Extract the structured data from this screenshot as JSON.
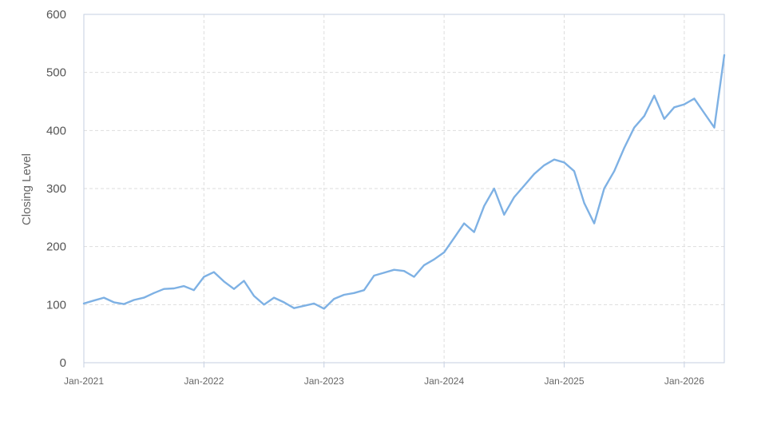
{
  "chart_data": {
    "type": "line",
    "title": "",
    "xlabel": "",
    "ylabel": "Closing Level",
    "x_ticks": [
      "Jan-2021",
      "Jan-2022",
      "Jan-2023",
      "Jan-2024",
      "Jan-2025",
      "Jan-2026"
    ],
    "y_ticks": [
      0,
      100,
      200,
      300,
      400,
      500,
      600
    ],
    "xlim": [
      "2021-01",
      "2026-05"
    ],
    "ylim": [
      0,
      600
    ],
    "grid": true,
    "legend": "none",
    "colors": {
      "line": "#7eb1e4",
      "grid": "#dddddd",
      "axis": "#c5cfe0",
      "plot_border": "#c5cfe0"
    },
    "series": [
      {
        "name": "",
        "points": [
          [
            "2021-01",
            102
          ],
          [
            "2021-02",
            107
          ],
          [
            "2021-03",
            112
          ],
          [
            "2021-04",
            104
          ],
          [
            "2021-05",
            101
          ],
          [
            "2021-06",
            108
          ],
          [
            "2021-07",
            112
          ],
          [
            "2021-08",
            120
          ],
          [
            "2021-09",
            127
          ],
          [
            "2021-10",
            128
          ],
          [
            "2021-11",
            132
          ],
          [
            "2021-12",
            125
          ],
          [
            "2022-01",
            148
          ],
          [
            "2022-02",
            156
          ],
          [
            "2022-03",
            140
          ],
          [
            "2022-04",
            127
          ],
          [
            "2022-05",
            141
          ],
          [
            "2022-06",
            115
          ],
          [
            "2022-07",
            100
          ],
          [
            "2022-08",
            112
          ],
          [
            "2022-09",
            104
          ],
          [
            "2022-10",
            94
          ],
          [
            "2022-11",
            98
          ],
          [
            "2022-12",
            102
          ],
          [
            "2023-01",
            93
          ],
          [
            "2023-02",
            110
          ],
          [
            "2023-03",
            117
          ],
          [
            "2023-04",
            120
          ],
          [
            "2023-05",
            125
          ],
          [
            "2023-06",
            150
          ],
          [
            "2023-07",
            155
          ],
          [
            "2023-08",
            160
          ],
          [
            "2023-09",
            158
          ],
          [
            "2023-10",
            148
          ],
          [
            "2023-11",
            168
          ],
          [
            "2023-12",
            178
          ],
          [
            "2024-01",
            190
          ],
          [
            "2024-02",
            215
          ],
          [
            "2024-03",
            240
          ],
          [
            "2024-04",
            225
          ],
          [
            "2024-05",
            270
          ],
          [
            "2024-06",
            300
          ],
          [
            "2024-07",
            255
          ],
          [
            "2024-08",
            285
          ],
          [
            "2024-09",
            305
          ],
          [
            "2024-10",
            325
          ],
          [
            "2024-11",
            340
          ],
          [
            "2024-12",
            350
          ],
          [
            "2025-01",
            345
          ],
          [
            "2025-02",
            330
          ],
          [
            "2025-03",
            275
          ],
          [
            "2025-04",
            240
          ],
          [
            "2025-05",
            300
          ],
          [
            "2025-06",
            330
          ],
          [
            "2025-07",
            370
          ],
          [
            "2025-08",
            405
          ],
          [
            "2025-09",
            425
          ],
          [
            "2025-10",
            460
          ],
          [
            "2025-11",
            420
          ],
          [
            "2025-12",
            440
          ],
          [
            "2026-01",
            445
          ],
          [
            "2026-02",
            455
          ],
          [
            "2026-03",
            430
          ],
          [
            "2026-04",
            405
          ],
          [
            "2026-05",
            530
          ]
        ]
      }
    ]
  }
}
